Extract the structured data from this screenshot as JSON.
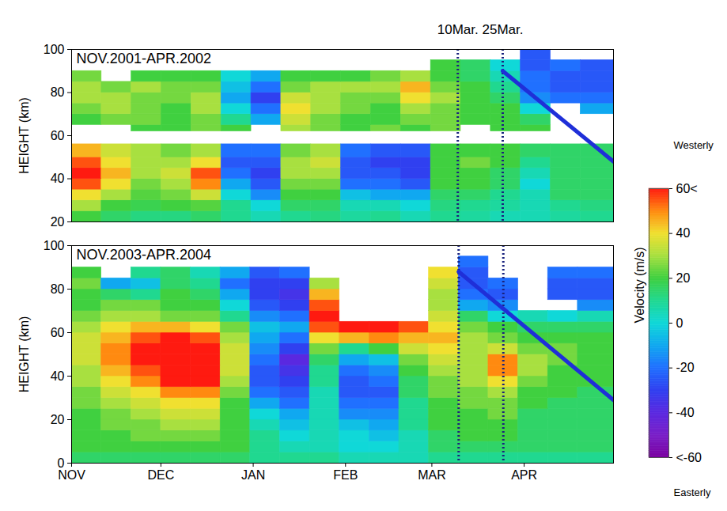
{
  "chart_data": [
    {
      "type": "heatmap",
      "title": "NOV.2001-APR.2002",
      "ylabel": "HEIGHT (km)",
      "xlim": [
        0,
        181
      ],
      "ylim": [
        20,
        100
      ],
      "yticks": [
        20,
        40,
        60,
        80,
        100
      ],
      "tick_labels": "y",
      "x_bins": [
        0,
        10,
        20,
        30,
        40,
        50,
        60,
        70,
        80,
        90,
        100,
        110,
        120,
        130,
        140,
        150,
        160,
        170,
        181
      ],
      "y_bins": [
        20,
        25,
        30,
        35,
        40,
        45,
        50,
        56,
        62,
        65,
        70,
        75,
        80,
        85,
        90,
        95,
        100
      ],
      "values": [
        [
          20,
          15,
          12,
          12,
          15,
          10,
          5,
          10,
          12,
          8,
          10,
          5,
          10,
          8,
          5,
          5,
          8,
          10
        ],
        [
          30,
          20,
          18,
          20,
          22,
          10,
          0,
          15,
          15,
          5,
          5,
          0,
          12,
          10,
          8,
          5,
          10,
          12
        ],
        [
          40,
          30,
          22,
          25,
          35,
          0,
          -15,
          20,
          20,
          -5,
          -10,
          -10,
          15,
          15,
          10,
          5,
          15,
          15
        ],
        [
          55,
          40,
          25,
          30,
          50,
          -10,
          -25,
          25,
          25,
          -20,
          -20,
          -25,
          20,
          20,
          15,
          0,
          15,
          15
        ],
        [
          60,
          45,
          30,
          35,
          55,
          -20,
          -30,
          30,
          30,
          -25,
          -25,
          -30,
          20,
          20,
          15,
          5,
          15,
          15
        ],
        [
          55,
          40,
          30,
          30,
          40,
          -25,
          -25,
          30,
          35,
          -25,
          -30,
          -30,
          20,
          25,
          20,
          10,
          15,
          15
        ],
        [
          45,
          35,
          30,
          25,
          30,
          -20,
          -20,
          25,
          30,
          -20,
          -25,
          -25,
          20,
          20,
          20,
          15,
          15,
          15
        ],
        [
          null,
          null,
          null,
          null,
          null,
          null,
          null,
          null,
          null,
          null,
          null,
          null,
          null,
          null,
          null,
          null,
          null,
          null
        ],
        [
          null,
          null,
          20,
          20,
          25,
          20,
          null,
          30,
          25,
          20,
          25,
          20,
          25,
          null,
          20,
          20,
          null,
          null
        ],
        [
          20,
          25,
          25,
          20,
          25,
          10,
          -10,
          35,
          25,
          20,
          20,
          25,
          25,
          20,
          20,
          15,
          null,
          null
        ],
        [
          25,
          30,
          25,
          20,
          30,
          0,
          -20,
          40,
          30,
          25,
          20,
          30,
          25,
          20,
          20,
          0,
          null,
          -10
        ],
        [
          30,
          30,
          25,
          25,
          30,
          -10,
          -30,
          35,
          30,
          25,
          25,
          40,
          30,
          20,
          15,
          -15,
          -20,
          -20
        ],
        [
          30,
          25,
          30,
          25,
          25,
          -5,
          -20,
          25,
          30,
          30,
          30,
          45,
          25,
          20,
          10,
          -20,
          -25,
          -25
        ],
        [
          25,
          null,
          20,
          20,
          20,
          0,
          -10,
          20,
          20,
          20,
          25,
          30,
          20,
          15,
          5,
          -20,
          -25,
          -25
        ],
        [
          null,
          null,
          null,
          null,
          null,
          null,
          null,
          null,
          null,
          null,
          null,
          null,
          20,
          15,
          0,
          -25,
          -20,
          -25
        ],
        [
          null,
          null,
          null,
          null,
          null,
          null,
          null,
          null,
          null,
          null,
          null,
          null,
          null,
          null,
          null,
          -25,
          null,
          null
        ]
      ],
      "vlines": [
        {
          "x": 129,
          "label": "10Mar."
        },
        {
          "x": 144,
          "label": "25Mar."
        }
      ],
      "trend_lines": [
        {
          "x": [
            144,
            181
          ],
          "y": [
            90,
            48
          ],
          "color": "#1f2fd8"
        }
      ],
      "colorbar": {
        "label": "Velocity (m/s)",
        "range": [
          -60,
          60
        ],
        "ticks": [
          {
            "value": 60,
            "label": "60<"
          },
          40,
          20,
          0,
          -20,
          -40,
          {
            "value": -60,
            "label": "<-60"
          }
        ],
        "stops": [
          -60,
          -50,
          -40,
          -30,
          -20,
          -10,
          0,
          10,
          20,
          30,
          40,
          50,
          60
        ],
        "colors": [
          "#7a00a0",
          "#7a20c8",
          "#5a28e0",
          "#3040f0",
          "#2070ff",
          "#10a8f0",
          "#10d8d8",
          "#20d890",
          "#40d040",
          "#a8e040",
          "#f0e030",
          "#ff8a10",
          "#ff1a10"
        ],
        "top_label": "Westerly",
        "bottom_label": "Easterly"
      }
    },
    {
      "type": "heatmap",
      "title": "NOV.2003-APR.2004",
      "ylabel": "HEIGHT (km)",
      "xlim": [
        0,
        182
      ],
      "ylim": [
        0,
        100
      ],
      "yticks": [
        0,
        20,
        40,
        60,
        80,
        100
      ],
      "xticks": [
        {
          "value": 0,
          "label": "NOV"
        },
        {
          "value": 30,
          "label": "DEC"
        },
        {
          "value": 61,
          "label": "JAN"
        },
        {
          "value": 92,
          "label": "FEB"
        },
        {
          "value": 121,
          "label": "MAR"
        },
        {
          "value": 152,
          "label": "APR"
        }
      ],
      "x_bins": [
        0,
        10,
        20,
        30,
        40,
        50,
        60,
        70,
        80,
        90,
        100,
        110,
        120,
        130,
        140,
        150,
        160,
        170,
        182
      ],
      "y_bins": [
        0,
        5,
        10,
        15,
        20,
        25,
        30,
        35,
        40,
        45,
        50,
        55,
        60,
        65,
        70,
        75,
        80,
        85,
        90,
        95,
        100
      ],
      "values": [
        [
          15,
          15,
          15,
          15,
          15,
          15,
          10,
          10,
          10,
          5,
          5,
          5,
          10,
          10,
          10,
          10,
          10,
          10
        ],
        [
          20,
          20,
          20,
          20,
          20,
          20,
          10,
          5,
          5,
          0,
          0,
          5,
          15,
          15,
          15,
          15,
          15,
          15
        ],
        [
          20,
          20,
          25,
          25,
          25,
          20,
          10,
          0,
          5,
          0,
          -5,
          5,
          15,
          20,
          20,
          15,
          15,
          15
        ],
        [
          20,
          25,
          25,
          30,
          30,
          20,
          5,
          -5,
          5,
          -5,
          -10,
          10,
          20,
          20,
          20,
          15,
          15,
          15
        ],
        [
          20,
          25,
          30,
          35,
          35,
          20,
          0,
          -10,
          5,
          -15,
          -15,
          10,
          20,
          20,
          25,
          15,
          15,
          15
        ],
        [
          25,
          30,
          35,
          40,
          40,
          20,
          -10,
          -20,
          5,
          -20,
          -20,
          10,
          20,
          25,
          25,
          20,
          15,
          15
        ],
        [
          25,
          35,
          40,
          50,
          50,
          25,
          -20,
          -25,
          5,
          -25,
          -25,
          15,
          25,
          25,
          30,
          20,
          20,
          15
        ],
        [
          30,
          40,
          50,
          60,
          60,
          30,
          -25,
          -30,
          10,
          -25,
          -20,
          15,
          25,
          30,
          40,
          25,
          20,
          20
        ],
        [
          30,
          45,
          55,
          65,
          65,
          35,
          -25,
          -35,
          10,
          -20,
          -15,
          20,
          30,
          30,
          50,
          30,
          20,
          20
        ],
        [
          35,
          50,
          60,
          65,
          65,
          35,
          -20,
          -40,
          15,
          -10,
          -5,
          25,
          35,
          30,
          50,
          30,
          25,
          20
        ],
        [
          35,
          50,
          60,
          65,
          60,
          35,
          -15,
          -30,
          25,
          10,
          20,
          35,
          40,
          30,
          35,
          25,
          25,
          20
        ],
        [
          35,
          45,
          55,
          60,
          55,
          30,
          -10,
          -20,
          40,
          45,
          50,
          45,
          45,
          30,
          25,
          20,
          20,
          20
        ],
        [
          30,
          40,
          45,
          45,
          40,
          25,
          -5,
          -10,
          55,
          60,
          65,
          55,
          40,
          25,
          20,
          15,
          15,
          15
        ],
        [
          25,
          30,
          30,
          25,
          25,
          10,
          -15,
          -20,
          60,
          null,
          null,
          null,
          35,
          15,
          0,
          5,
          0,
          5
        ],
        [
          20,
          25,
          25,
          20,
          20,
          0,
          -25,
          -30,
          55,
          null,
          null,
          null,
          30,
          -10,
          -15,
          null,
          null,
          -15
        ],
        [
          20,
          15,
          10,
          20,
          15,
          -10,
          -30,
          -35,
          45,
          null,
          null,
          null,
          30,
          -20,
          -25,
          null,
          -25,
          -25
        ],
        [
          25,
          -10,
          -5,
          15,
          10,
          -20,
          -30,
          -30,
          30,
          null,
          null,
          null,
          35,
          -25,
          -20,
          null,
          -25,
          -25
        ],
        [
          20,
          null,
          10,
          15,
          5,
          -10,
          -25,
          -20,
          null,
          null,
          null,
          null,
          40,
          -25,
          null,
          null,
          -20,
          -20
        ],
        [
          null,
          null,
          null,
          null,
          null,
          null,
          null,
          null,
          null,
          null,
          null,
          null,
          null,
          -20,
          null,
          null,
          null,
          null
        ],
        [
          null,
          null,
          null,
          null,
          null,
          null,
          null,
          null,
          null,
          null,
          null,
          null,
          null,
          null,
          null,
          null,
          null,
          null
        ]
      ],
      "vlines": [
        {
          "x": 130
        },
        {
          "x": 145
        }
      ],
      "trend_lines": [
        {
          "x": [
            130,
            182
          ],
          "y": [
            88,
            29
          ],
          "color": "#1f2fd8"
        }
      ]
    }
  ]
}
